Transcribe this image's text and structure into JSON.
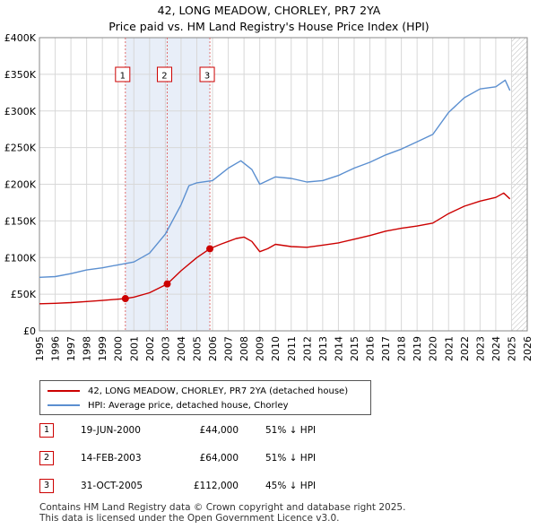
{
  "header": {
    "title": "42, LONG MEADOW, CHORLEY, PR7 2YA",
    "subtitle": "Price paid vs. HM Land Registry's House Price Index (HPI)"
  },
  "chart_data": {
    "type": "line",
    "title": "42, LONG MEADOW, CHORLEY, PR7 2YA",
    "subtitle": "Price paid vs. HM Land Registry's House Price Index (HPI)",
    "xlim": [
      1995,
      2026
    ],
    "ylim": [
      0,
      400000
    ],
    "x_ticks": [
      1995,
      1996,
      1997,
      1998,
      1999,
      2000,
      2001,
      2002,
      2003,
      2004,
      2005,
      2006,
      2007,
      2008,
      2009,
      2010,
      2011,
      2012,
      2013,
      2014,
      2015,
      2016,
      2017,
      2018,
      2019,
      2020,
      2021,
      2022,
      2023,
      2024,
      2025,
      2026
    ],
    "y_ticks": [
      {
        "value": 0,
        "label": "£0"
      },
      {
        "value": 50000,
        "label": "£50K"
      },
      {
        "value": 100000,
        "label": "£100K"
      },
      {
        "value": 150000,
        "label": "£150K"
      },
      {
        "value": 200000,
        "label": "£200K"
      },
      {
        "value": 250000,
        "label": "£250K"
      },
      {
        "value": 300000,
        "label": "£300K"
      },
      {
        "value": 350000,
        "label": "£350K"
      },
      {
        "value": 400000,
        "label": "£400K"
      }
    ],
    "grid": true,
    "shaded_periods": [
      {
        "from": 2000.46,
        "to": 2005.83
      }
    ],
    "future_hatch_from": 2025.0,
    "series": [
      {
        "name": "42, LONG MEADOW, CHORLEY, PR7 2YA (detached house)",
        "color": "#cc0000",
        "points": [
          [
            1995.0,
            37000
          ],
          [
            1996.0,
            37500
          ],
          [
            1997.0,
            38500
          ],
          [
            1998.0,
            40000
          ],
          [
            1999.0,
            41500
          ],
          [
            2000.46,
            44000
          ],
          [
            2001.0,
            46000
          ],
          [
            2002.0,
            52000
          ],
          [
            2003.12,
            64000
          ],
          [
            2004.0,
            82000
          ],
          [
            2005.0,
            100000
          ],
          [
            2005.83,
            112000
          ],
          [
            2006.5,
            118000
          ],
          [
            2007.5,
            126000
          ],
          [
            2008.0,
            128000
          ],
          [
            2008.5,
            122000
          ],
          [
            2009.0,
            108000
          ],
          [
            2009.5,
            112000
          ],
          [
            2010.0,
            118000
          ],
          [
            2011.0,
            115000
          ],
          [
            2012.0,
            114000
          ],
          [
            2013.0,
            117000
          ],
          [
            2014.0,
            120000
          ],
          [
            2015.0,
            125000
          ],
          [
            2016.0,
            130000
          ],
          [
            2017.0,
            136000
          ],
          [
            2018.0,
            140000
          ],
          [
            2019.0,
            143000
          ],
          [
            2020.0,
            147000
          ],
          [
            2021.0,
            160000
          ],
          [
            2022.0,
            170000
          ],
          [
            2023.0,
            177000
          ],
          [
            2024.0,
            182000
          ],
          [
            2024.5,
            188000
          ],
          [
            2024.9,
            180000
          ]
        ]
      },
      {
        "name": "HPI: Average price, detached house, Chorley",
        "color": "#5b8fd0",
        "points": [
          [
            1995.0,
            73000
          ],
          [
            1996.0,
            74000
          ],
          [
            1997.0,
            78000
          ],
          [
            1998.0,
            83000
          ],
          [
            1999.0,
            86000
          ],
          [
            2000.0,
            90000
          ],
          [
            2001.0,
            94000
          ],
          [
            2002.0,
            106000
          ],
          [
            2003.0,
            132000
          ],
          [
            2004.0,
            172000
          ],
          [
            2004.5,
            198000
          ],
          [
            2005.0,
            202000
          ],
          [
            2006.0,
            205000
          ],
          [
            2007.0,
            222000
          ],
          [
            2007.8,
            232000
          ],
          [
            2008.5,
            220000
          ],
          [
            2009.0,
            200000
          ],
          [
            2009.5,
            205000
          ],
          [
            2010.0,
            210000
          ],
          [
            2011.0,
            208000
          ],
          [
            2012.0,
            203000
          ],
          [
            2013.0,
            205000
          ],
          [
            2014.0,
            212000
          ],
          [
            2015.0,
            222000
          ],
          [
            2016.0,
            230000
          ],
          [
            2017.0,
            240000
          ],
          [
            2018.0,
            248000
          ],
          [
            2019.0,
            258000
          ],
          [
            2020.0,
            268000
          ],
          [
            2021.0,
            298000
          ],
          [
            2022.0,
            318000
          ],
          [
            2023.0,
            330000
          ],
          [
            2024.0,
            333000
          ],
          [
            2024.6,
            342000
          ],
          [
            2024.9,
            328000
          ]
        ]
      }
    ],
    "markers": [
      {
        "label": "1",
        "x": 2000.46,
        "y": 44000
      },
      {
        "label": "2",
        "x": 2003.12,
        "y": 64000
      },
      {
        "label": "3",
        "x": 2005.83,
        "y": 112000
      }
    ]
  },
  "legend": {
    "items": [
      {
        "label": "42, LONG MEADOW, CHORLEY, PR7 2YA (detached house)",
        "color": "#cc0000"
      },
      {
        "label": "HPI: Average price, detached house, Chorley",
        "color": "#5b8fd0"
      }
    ]
  },
  "transactions": [
    {
      "num": "1",
      "date": "19-JUN-2000",
      "price": "£44,000",
      "hpi": "51% ↓ HPI"
    },
    {
      "num": "2",
      "date": "14-FEB-2003",
      "price": "£64,000",
      "hpi": "51% ↓ HPI"
    },
    {
      "num": "3",
      "date": "31-OCT-2005",
      "price": "£112,000",
      "hpi": "45% ↓ HPI"
    }
  ],
  "footer": {
    "line1": "Contains HM Land Registry data © Crown copyright and database right 2025.",
    "line2": "This data is licensed under the Open Government Licence v3.0."
  }
}
